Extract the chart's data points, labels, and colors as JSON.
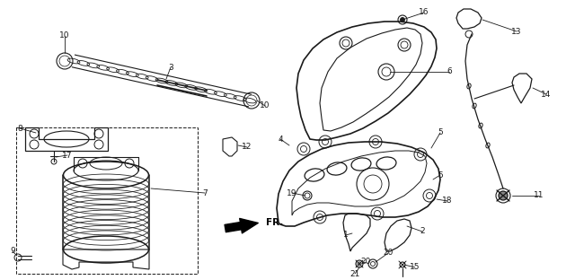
{
  "background_color": "#ffffff",
  "line_color": "#1a1a1a",
  "label_fontsize": 6.5,
  "line_width": 0.9,
  "fig_width": 6.4,
  "fig_height": 3.12,
  "dpi": 100
}
